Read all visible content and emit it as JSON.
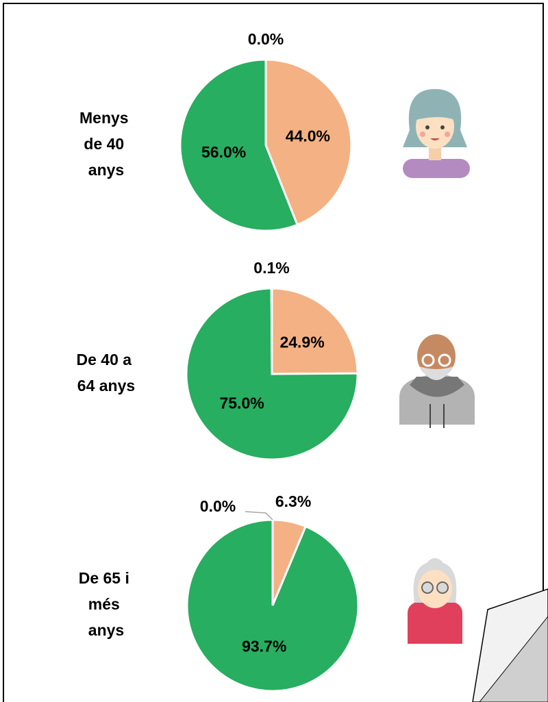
{
  "chart_data": [
    {
      "type": "pie",
      "title": "Menys de 40 anys",
      "categories": [
        null,
        null,
        null
      ],
      "values": [
        44.0,
        56.0,
        0.0
      ],
      "value_labels": [
        "44.0%",
        "56.0%",
        "0.0%"
      ],
      "colors": [
        "#f4b183",
        "#27ae60",
        "#a6a6a6"
      ]
    },
    {
      "type": "pie",
      "title": "De 40 a 64 anys",
      "categories": [
        null,
        null,
        null
      ],
      "values": [
        24.9,
        75.0,
        0.1
      ],
      "value_labels": [
        "24.9%",
        "75.0%",
        "0.1%"
      ],
      "colors": [
        "#f4b183",
        "#27ae60",
        "#a6a6a6"
      ]
    },
    {
      "type": "pie",
      "title": "De 65 i més anys",
      "categories": [
        null,
        null,
        null
      ],
      "values": [
        6.3,
        93.7,
        0.0
      ],
      "value_labels": [
        "6.3%",
        "93.7%",
        "0.0%"
      ],
      "colors": [
        "#f4b183",
        "#27ae60",
        "#a6a6a6"
      ]
    }
  ]
}
